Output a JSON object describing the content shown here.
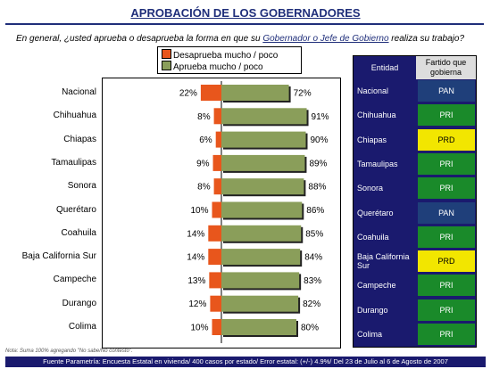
{
  "header": {
    "title": "APROBACIÓN DE LOS GOBERNADORES",
    "question_pre": "En general, ¿usted aprueba o desaprueba la forma en que su ",
    "question_hl": "Gobernador o Jefe de Gobierno",
    "question_post": " realiza su trabajo?"
  },
  "legend": {
    "desaprueba": "Desaprueba mucho / poco",
    "aprueba": "Aprueba mucho / poco"
  },
  "colors": {
    "desaprueba": "#e8561c",
    "aprueba": "#8a9e5a",
    "pan": "#1f3f7a",
    "pri": "#1a8a2a",
    "prd": "#f2e600",
    "table_bg": "#1a1a6e"
  },
  "chart_data": {
    "type": "bar",
    "categories": [
      "Nacional",
      "Chihuahua",
      "Chiapas",
      "Tamaulipas",
      "Sonora",
      "Querétaro",
      "Coahuila",
      "Baja California Sur",
      "Campeche",
      "Durango",
      "Colima"
    ],
    "series": [
      {
        "name": "Desaprueba mucho / poco",
        "values": [
          22,
          8,
          6,
          9,
          8,
          10,
          14,
          14,
          13,
          12,
          10
        ],
        "labels": [
          "22%",
          "8%",
          "6%",
          "9%",
          "8%",
          "10%",
          "14%",
          "14%",
          "13%",
          "12%",
          "10%"
        ]
      },
      {
        "name": "Aprueba mucho / poco",
        "values": [
          72,
          91,
          90,
          89,
          88,
          86,
          85,
          84,
          83,
          82,
          80
        ],
        "labels": [
          "72%",
          "91%",
          "90%",
          "89%",
          "88%",
          "86%",
          "85%",
          "84%",
          "83%",
          "82%",
          "80%"
        ]
      }
    ],
    "orientation": "horizontal",
    "legend": "top"
  },
  "table": {
    "col_entidad": "Entidad",
    "col_partido": "Fartido que gobierna",
    "rows": [
      {
        "entidad": "Nacional",
        "partido": "PAN"
      },
      {
        "entidad": "Chihuahua",
        "partido": "PRI"
      },
      {
        "entidad": "Chiapas",
        "partido": "PRD"
      },
      {
        "entidad": "Tamaulipas",
        "partido": "PRI"
      },
      {
        "entidad": "Sonora",
        "partido": "PRI"
      },
      {
        "entidad": "Querétaro",
        "partido": "PAN"
      },
      {
        "entidad": "Coahuila",
        "partido": "PRI"
      },
      {
        "entidad": "Baja California Sur",
        "partido": "PRD"
      },
      {
        "entidad": "Campeche",
        "partido": "PRI"
      },
      {
        "entidad": "Durango",
        "partido": "PRI"
      },
      {
        "entidad": "Colima",
        "partido": "PRI"
      }
    ]
  },
  "note": "Nota: Suma 100% agregando \"No sabe/No contestó\".",
  "footer": "Fuente Parametría: Encuesta Estatal en vivienda/ 400 casos por estado/ Error estatal: (+/-) 4.9%/ Del 23 de Julio al 6 de Agosto de 2007"
}
